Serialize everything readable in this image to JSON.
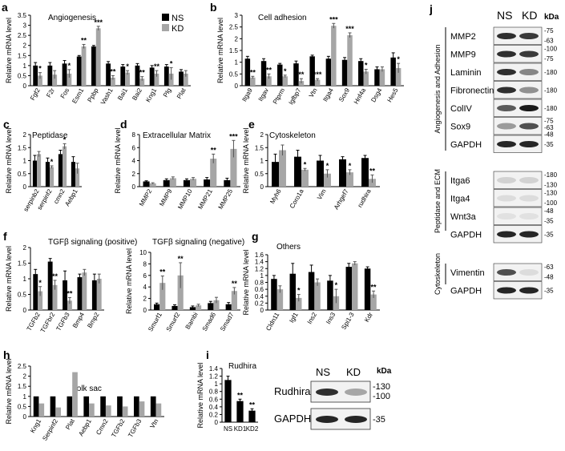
{
  "colors": {
    "ns": "#000000",
    "kd": "#a6a6a6",
    "band": "#1a1a1a",
    "blot_bg": "#f2f2f2"
  },
  "legend": {
    "ns": "NS",
    "kd": "KD"
  },
  "axis_label": "Relative mRNA level",
  "chart_data": [
    {
      "panel": "a",
      "type": "bar",
      "title": "Angiogenesis",
      "ylabel": "Relative mRNA level",
      "ylim": [
        0,
        3.5
      ],
      "yticks": [
        "0",
        "0.5",
        "1",
        "1.5",
        "2",
        "2.5",
        "3",
        "3.5"
      ],
      "categories": [
        "Fgf2",
        "F2r",
        "Fos",
        "Esm1",
        "Ppbp",
        "Vash1",
        "Bai1",
        "Bai2",
        "Kng1",
        "Plg",
        "Plat"
      ],
      "series": [
        {
          "name": "NS",
          "values": [
            1,
            1,
            1.1,
            1.45,
            1.95,
            1.1,
            0.95,
            1.0,
            0.9,
            0.95,
            0.7
          ]
        },
        {
          "name": "KD",
          "values": [
            0.5,
            0.55,
            0.6,
            1.95,
            2.85,
            0.4,
            0.65,
            0.35,
            0.6,
            0.6,
            0.6
          ]
        }
      ],
      "errors": [
        [
          0.15,
          0.15,
          0.15,
          0.05,
          0.05,
          0.1,
          0.1,
          0.1,
          0.1,
          0.1,
          0.1
        ],
        [
          0.15,
          0.2,
          0.2,
          0.1,
          0.1,
          0.1,
          0.1,
          0.1,
          0.15,
          0.3,
          0.15
        ]
      ],
      "annotations": [
        "*",
        "",
        "*",
        "**",
        "***",
        "**",
        "*",
        "**",
        "**",
        "*",
        ""
      ]
    },
    {
      "panel": "b",
      "type": "bar",
      "title": "Cell adhesion",
      "ylabel": "Relative mRNA level",
      "ylim": [
        0,
        3
      ],
      "yticks": [
        "0",
        "0.5",
        "1",
        "1.5",
        "2",
        "2.5",
        "3"
      ],
      "categories": [
        "Itga9",
        "Itgav",
        "Ptprm",
        "Igfbp7",
        "Vtn",
        "Itga4",
        "Sox9",
        "Hnf4a",
        "Dsg4",
        "Hes5"
      ],
      "series": [
        {
          "name": "NS",
          "values": [
            1.15,
            1.05,
            0.9,
            0.95,
            1.25,
            1.15,
            1.1,
            1.05,
            0.7,
            1.2
          ]
        },
        {
          "name": "KD",
          "values": [
            0.35,
            0.4,
            0.4,
            0.2,
            0.25,
            2.55,
            2.15,
            0.6,
            0.7,
            0.75
          ]
        }
      ],
      "errors": [
        [
          0.1,
          0.1,
          0.05,
          0.1,
          0.05,
          0.1,
          0.1,
          0.1,
          0.1,
          0.2
        ],
        [
          0.05,
          0.1,
          0.05,
          0.1,
          0.05,
          0.1,
          0.1,
          0.1,
          0.1,
          0.2
        ]
      ],
      "annotations": [
        "**",
        "**",
        "*",
        "**",
        "***",
        "***",
        "***",
        "*",
        "",
        "*"
      ]
    },
    {
      "panel": "c",
      "type": "bar",
      "title": "Peptidase",
      "ylabel": "Relative mRNA level",
      "ylim": [
        0,
        2
      ],
      "yticks": [
        "0",
        "0.5",
        "1",
        "1.5",
        "2"
      ],
      "categories": [
        "serpinb2",
        "serpinf2",
        "cmn2",
        "Aebp1"
      ],
      "series": [
        {
          "name": "NS",
          "values": [
            1,
            0.95,
            1.25,
            0.95
          ]
        },
        {
          "name": "KD",
          "values": [
            1.25,
            0.75,
            1.55,
            0.7
          ]
        }
      ],
      "errors": [
        [
          0.2,
          0.15,
          0.15,
          0.2
        ],
        [
          0.1,
          0.05,
          0.1,
          0.2
        ]
      ],
      "annotations": [
        "",
        "*",
        "*",
        ""
      ]
    },
    {
      "panel": "d",
      "type": "bar",
      "title": "Extracellular Matrix",
      "ylabel": "Relative mRNA level",
      "ylim": [
        0,
        8
      ],
      "yticks": [
        "0",
        "2",
        "4",
        "6",
        "8"
      ],
      "categories": [
        "MMP2",
        "MMP9",
        "MMP10",
        "MMP21",
        "MMP25"
      ],
      "series": [
        {
          "name": "NS",
          "values": [
            0.8,
            1.0,
            1.0,
            1.1,
            1.0
          ]
        },
        {
          "name": "KD",
          "values": [
            0.5,
            1.3,
            1.2,
            4.3,
            5.8
          ]
        }
      ],
      "errors": [
        [
          0.1,
          0.2,
          0.2,
          0.3,
          0.3
        ],
        [
          0.1,
          0.2,
          0.2,
          0.7,
          1.3
        ]
      ],
      "annotations": [
        "",
        "",
        "",
        "**",
        "***"
      ]
    },
    {
      "panel": "e",
      "type": "bar",
      "title": "Cytoskeleton",
      "ylabel": "Relative mRNA level",
      "ylim": [
        0,
        2
      ],
      "yticks": [
        "0",
        "0.5",
        "1",
        "1.5",
        "2"
      ],
      "categories": [
        "Myh6",
        "Coro1a",
        "Vim",
        "Arhgef7",
        "rudhira"
      ],
      "series": [
        {
          "name": "NS",
          "values": [
            0.95,
            1.15,
            1.0,
            1.05,
            1.1
          ]
        },
        {
          "name": "KD",
          "values": [
            1.4,
            0.65,
            0.5,
            0.55,
            0.3
          ]
        }
      ],
      "errors": [
        [
          0.3,
          0.25,
          0.2,
          0.1,
          0.1
        ],
        [
          0.2,
          0.05,
          0.15,
          0.1,
          0.15
        ]
      ],
      "annotations": [
        "",
        "*",
        "*",
        "*",
        "**"
      ]
    },
    {
      "panel": "f",
      "type": "bar",
      "title": "TGFβ signaling (positive)",
      "ylabel": "Relative mRNA level",
      "ylim": [
        0,
        2
      ],
      "yticks": [
        "0",
        "0.5",
        "1",
        "1.5",
        "2"
      ],
      "categories": [
        "TGFb2",
        "TGFbr2",
        "TGFb3",
        "Bmp4",
        "Bmp2"
      ],
      "series": [
        {
          "name": "NS",
          "values": [
            1.15,
            1.55,
            0.95,
            1.05,
            0.95
          ]
        },
        {
          "name": "KD",
          "values": [
            0.6,
            0.8,
            0.3,
            1.2,
            1.0
          ]
        }
      ],
      "errors": [
        [
          0.15,
          0.1,
          0.3,
          0.1,
          0.2
        ],
        [
          0.15,
          0.15,
          0.1,
          0.1,
          0.15
        ]
      ],
      "annotations": [
        "*",
        "**",
        "**",
        "",
        ""
      ]
    },
    {
      "panel": "f2",
      "type": "bar",
      "title": "TGFβ signaling (negative)",
      "ylabel": "Relative mRNA level",
      "ylim": [
        0,
        10
      ],
      "yticks": [
        "0",
        "2",
        "4",
        "6",
        "8",
        "10"
      ],
      "categories": [
        "Smurf1",
        "Smurf2",
        "Bambi",
        "Smad6",
        "Smad7"
      ],
      "series": [
        {
          "name": "NS",
          "values": [
            1.0,
            0.7,
            0.5,
            1.2,
            1.0
          ]
        },
        {
          "name": "KD",
          "values": [
            4.7,
            6.0,
            0.8,
            1.7,
            3.3
          ]
        }
      ],
      "errors": [
        [
          0.2,
          0.2,
          0.2,
          0.3,
          0.3
        ],
        [
          1.2,
          2.2,
          0.2,
          0.5,
          0.6
        ]
      ],
      "annotations": [
        "**",
        "**",
        "",
        "",
        "**"
      ]
    },
    {
      "panel": "g",
      "type": "bar",
      "title": "Others",
      "ylabel": "Relative mRNA level",
      "ylim": [
        0,
        1.6
      ],
      "yticks": [
        "0",
        "0.2",
        "0.4",
        "0.6",
        "0.8",
        "1",
        "1.2",
        "1.4",
        "1.6"
      ],
      "categories": [
        "Cldn11",
        "Igf1",
        "Ins2",
        "Ins3",
        "Spi1-3",
        "Kdr"
      ],
      "series": [
        {
          "name": "NS",
          "values": [
            0.9,
            1.05,
            1.1,
            0.85,
            1.25,
            1.2
          ]
        },
        {
          "name": "KD",
          "values": [
            0.6,
            0.35,
            0.8,
            0.4,
            1.35,
            0.45
          ]
        }
      ],
      "errors": [
        [
          0.1,
          0.3,
          0.2,
          0.15,
          0.1,
          0.05
        ],
        [
          0.1,
          0.1,
          0.1,
          0.2,
          0.05,
          0.1
        ]
      ],
      "annotations": [
        "",
        "*",
        "",
        "*",
        "",
        "**"
      ]
    },
    {
      "panel": "h",
      "type": "bar",
      "title": "Yolk sac",
      "ylabel": "Relative mRNA level",
      "ylim": [
        0,
        2.5
      ],
      "yticks": [
        "0",
        "0.5",
        "1",
        "1.5",
        "2",
        "2.5"
      ],
      "categories": [
        "Kng1",
        "Serpinf2",
        "Plat",
        "Aebp1",
        "Cmn2",
        "TGFb2",
        "TGFb3",
        "Vtn"
      ],
      "series": [
        {
          "name": "NS",
          "values": [
            1,
            1,
            1,
            1,
            1,
            1,
            1,
            1
          ]
        },
        {
          "name": "KD",
          "values": [
            0.65,
            0.45,
            2.2,
            0.65,
            0.55,
            0.5,
            0.75,
            0.65
          ]
        }
      ],
      "errors": [
        [
          0,
          0,
          0,
          0,
          0,
          0,
          0,
          0
        ],
        [
          0,
          0,
          0,
          0,
          0,
          0,
          0,
          0
        ]
      ],
      "annotations": [
        "",
        "",
        "",
        "",
        "",
        "",
        "",
        ""
      ]
    },
    {
      "panel": "i",
      "type": "bar",
      "title": "Rudhira",
      "ylabel": "Relative mRNA level",
      "ylim": [
        0,
        1.4
      ],
      "yticks": [
        "0",
        "0.2",
        "0.4",
        "0.6",
        "0.8",
        "1",
        "1.2",
        "1.4"
      ],
      "categories": [
        "NS",
        "KD1",
        "KD2"
      ],
      "series": [
        {
          "values": [
            1.1,
            0.55,
            0.3
          ]
        }
      ],
      "errors": [
        [
          0.1,
          0.05,
          0.05
        ]
      ],
      "annotations": [
        "",
        "**",
        "**"
      ]
    }
  ],
  "panel_letters": [
    "a",
    "b",
    "c",
    "d",
    "e",
    "f",
    "g",
    "h",
    "i",
    "j"
  ],
  "blot_i": {
    "headers": [
      "NS",
      "KD"
    ],
    "kda": "kDa",
    "rows": [
      {
        "label": "Rudhira",
        "markers": [
          "-130",
          "-100"
        ],
        "intensity": [
          0.9,
          0.35
        ]
      },
      {
        "label": "GAPDH",
        "markers": [
          "-35"
        ],
        "intensity": [
          0.95,
          0.95
        ]
      }
    ]
  },
  "blot_j": {
    "headers": [
      "NS",
      "KD"
    ],
    "kda": "kDa",
    "groups": [
      {
        "name": "Angiogenesis and Adhesion",
        "rows": [
          {
            "label": "MMP2",
            "markers": [
              "-75",
              "-63"
            ],
            "intensity": [
              0.9,
              0.85
            ]
          },
          {
            "label": "MMP9",
            "markers": [
              "-100",
              "-75"
            ],
            "intensity": [
              0.9,
              0.85
            ]
          },
          {
            "label": "Laminin",
            "markers": [
              "-180"
            ],
            "intensity": [
              0.9,
              0.5
            ]
          },
          {
            "label": "Fibronectin",
            "markers": [
              "-180"
            ],
            "intensity": [
              0.9,
              0.45
            ]
          },
          {
            "label": "ColIV",
            "markers": [
              "-180"
            ],
            "intensity": [
              0.7,
              1.0
            ]
          },
          {
            "label": "Sox9",
            "markers": [
              "-75",
              "-63",
              "-48"
            ],
            "intensity": [
              0.4,
              0.75
            ]
          },
          {
            "label": "GAPDH",
            "markers": [
              "-35"
            ],
            "intensity": [
              0.95,
              0.95
            ]
          }
        ]
      },
      {
        "name": "Peptidase and ECM",
        "rows": [
          {
            "label": "Itga6",
            "markers": [
              "-180",
              "-130"
            ],
            "intensity": [
              0.15,
              0.15
            ]
          },
          {
            "label": "Itga4",
            "markers": [
              "-130",
              "-100"
            ],
            "intensity": [
              0.1,
              0.1
            ]
          },
          {
            "label": "Wnt3a",
            "markers": [
              "-48",
              "-35"
            ],
            "intensity": [
              0.08,
              0.08
            ]
          },
          {
            "label": "GAPDH",
            "markers": [
              "-35"
            ],
            "intensity": [
              0.95,
              0.95
            ]
          }
        ]
      },
      {
        "name": "Cytoskeleton",
        "rows": [
          {
            "label": "Vimentin",
            "markers": [
              "-63",
              "-48"
            ],
            "intensity": [
              0.75,
              0.1
            ]
          },
          {
            "label": "GAPDH",
            "markers": [
              "-35"
            ],
            "intensity": [
              0.95,
              0.95
            ]
          }
        ]
      }
    ]
  }
}
